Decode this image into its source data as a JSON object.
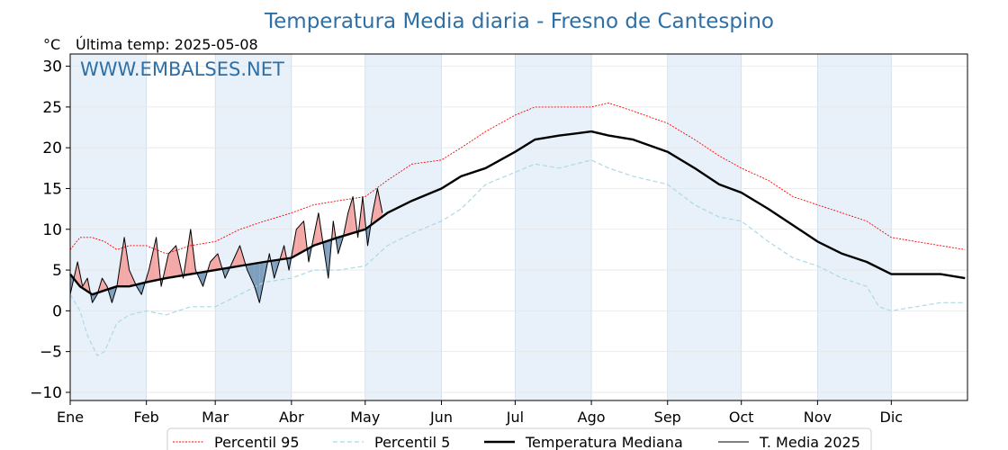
{
  "chart_data": {
    "type": "line",
    "title": "Temperatura Media diaria - Fresno de Cantespino",
    "unit": "°C",
    "subtitle": "Última temp: 2025-05-08",
    "watermark": "WWW.EMBALSES.NET",
    "ylim": [
      -11,
      31.5
    ],
    "yticks": [
      -10,
      -5,
      0,
      5,
      10,
      15,
      20,
      25,
      30
    ],
    "ytick_labels": [
      "−10",
      "−5",
      "0",
      "5",
      "10",
      "15",
      "20",
      "25",
      "30"
    ],
    "months": [
      "Ene",
      "Feb",
      "Mar",
      "Abr",
      "May",
      "Jun",
      "Jul",
      "Ago",
      "Sep",
      "Oct",
      "Nov",
      "Dic"
    ],
    "month_start_days": [
      1,
      32,
      60,
      91,
      121,
      152,
      182,
      213,
      244,
      274,
      305,
      335
    ],
    "days_in_year": 365,
    "grid": true,
    "legend_position": "bottom",
    "colors": {
      "p95": "#ff0000",
      "p5": "#add8e6",
      "median": "#000000",
      "current": "#000000",
      "above_fill": "#f4a9a9",
      "below_fill": "#7f9fbf",
      "band": "#e8f1f9"
    },
    "series": [
      {
        "name": "Percentil 95",
        "style": "dotted-red",
        "days": [
          1,
          5,
          10,
          15,
          20,
          25,
          32,
          40,
          50,
          60,
          70,
          80,
          91,
          100,
          110,
          121,
          130,
          140,
          152,
          160,
          170,
          182,
          190,
          200,
          213,
          220,
          230,
          244,
          255,
          265,
          274,
          285,
          295,
          305,
          315,
          325,
          335,
          345,
          355,
          365
        ],
        "values": [
          7.5,
          9,
          9,
          8.5,
          7.5,
          8,
          8,
          7,
          8,
          8.5,
          10,
          11,
          12,
          13,
          13.5,
          14,
          16,
          18,
          18.5,
          20,
          22,
          24,
          25,
          25,
          25,
          25.5,
          24.5,
          23,
          21,
          19,
          17.5,
          16,
          14,
          13,
          12,
          11,
          9,
          8.5,
          8,
          7.5
        ]
      },
      {
        "name": "Percentil 5",
        "style": "dashed-lightblue",
        "days": [
          1,
          5,
          8,
          12,
          15,
          20,
          25,
          32,
          40,
          50,
          60,
          70,
          80,
          91,
          100,
          110,
          121,
          130,
          140,
          152,
          160,
          170,
          182,
          190,
          200,
          213,
          220,
          230,
          244,
          255,
          265,
          274,
          285,
          295,
          305,
          315,
          325,
          330,
          335,
          345,
          355,
          365
        ],
        "values": [
          2,
          0,
          -3,
          -5.5,
          -5,
          -1.5,
          -0.5,
          0,
          -0.5,
          0.5,
          0.5,
          2,
          3.5,
          4,
          5,
          5,
          5.5,
          8,
          9.5,
          11,
          12.5,
          15.5,
          17,
          18,
          17.5,
          18.5,
          17.5,
          16.5,
          15.5,
          13,
          11.5,
          11,
          8.5,
          6.5,
          5.5,
          4,
          3,
          0.5,
          0,
          0.5,
          1,
          1
        ]
      },
      {
        "name": "Temperatura Mediana",
        "style": "thick-black",
        "days": [
          1,
          5,
          10,
          15,
          20,
          25,
          32,
          40,
          50,
          60,
          70,
          80,
          91,
          100,
          110,
          121,
          130,
          140,
          152,
          160,
          170,
          182,
          190,
          200,
          213,
          220,
          230,
          244,
          255,
          265,
          274,
          285,
          295,
          305,
          315,
          325,
          335,
          345,
          355,
          365
        ],
        "values": [
          4.5,
          3,
          2,
          2.5,
          3,
          3,
          3.5,
          4,
          4.5,
          5,
          5.5,
          6,
          6.5,
          8,
          9,
          10,
          12,
          13.5,
          15,
          16.5,
          17.5,
          19.5,
          21,
          21.5,
          22,
          21.5,
          21,
          19.5,
          17.5,
          15.5,
          14.5,
          12.5,
          10.5,
          8.5,
          7,
          6,
          4.5,
          4.5,
          4.5,
          4
        ]
      },
      {
        "name": "T. Media 2025",
        "style": "thin-black",
        "days": [
          1,
          4,
          6,
          8,
          10,
          12,
          14,
          16,
          18,
          20,
          23,
          25,
          28,
          30,
          33,
          36,
          38,
          41,
          44,
          47,
          50,
          52,
          55,
          58,
          61,
          64,
          67,
          70,
          73,
          76,
          78,
          80,
          82,
          84,
          86,
          88,
          90,
          93,
          96,
          98,
          100,
          102,
          104,
          106,
          108,
          110,
          112,
          114,
          116,
          118,
          120,
          122,
          124,
          126,
          128
        ],
        "values": [
          2,
          6,
          3,
          4,
          1,
          2,
          4,
          3,
          1,
          3,
          9,
          5,
          3,
          2,
          5,
          9,
          3,
          7,
          8,
          4,
          10,
          5,
          3,
          6,
          7,
          4,
          6,
          8,
          5,
          3,
          1,
          4,
          7,
          4,
          6,
          8,
          5,
          10,
          11,
          6,
          9,
          12,
          8,
          4,
          11,
          7,
          9,
          12,
          14,
          9,
          14,
          8,
          12,
          15,
          12
        ]
      }
    ]
  }
}
